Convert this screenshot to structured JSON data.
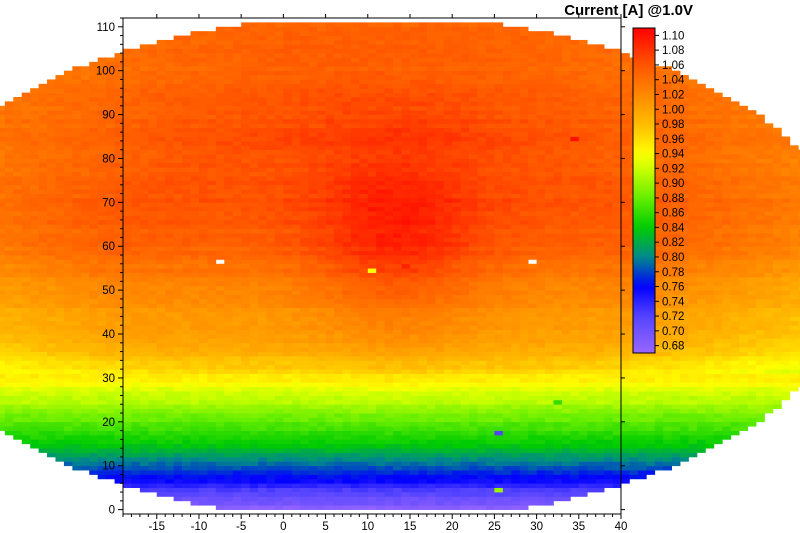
{
  "chart_data": {
    "type": "heatmap",
    "title": "",
    "colorbar_title": "Current [A] @1.0V",
    "xlabel": "",
    "ylabel": "",
    "xlim": [
      -19,
      40
    ],
    "ylim": [
      -1,
      112
    ],
    "x_ticks": [
      -15,
      -10,
      -5,
      0,
      5,
      10,
      15,
      20,
      25,
      30,
      35,
      40
    ],
    "y_ticks": [
      0,
      10,
      20,
      30,
      40,
      50,
      60,
      70,
      80,
      90,
      100,
      110
    ],
    "wafer_center": [
      10.5,
      55
    ],
    "wafer_radius": 57.5,
    "die_size": [
      1,
      1
    ],
    "missing_dies": [
      [
        -8,
        56
      ],
      [
        29,
        56
      ]
    ],
    "colorbar": {
      "ticks": [
        1.1,
        1.08,
        1.06,
        1.04,
        1.02,
        1.0,
        0.98,
        0.96,
        0.94,
        0.92,
        0.9,
        0.88,
        0.86,
        0.84,
        0.82,
        0.8,
        0.78,
        0.76,
        0.74,
        0.72,
        0.7,
        0.68
      ],
      "range": [
        0.67,
        1.11
      ],
      "stops": [
        {
          "value": 0.67,
          "color": "#9966ff"
        },
        {
          "value": 0.72,
          "color": "#5544ff"
        },
        {
          "value": 0.76,
          "color": "#0000ff"
        },
        {
          "value": 0.8,
          "color": "#008a8a"
        },
        {
          "value": 0.84,
          "color": "#00cc00"
        },
        {
          "value": 0.88,
          "color": "#66ee00"
        },
        {
          "value": 0.92,
          "color": "#ccff00"
        },
        {
          "value": 0.94,
          "color": "#ffff00"
        },
        {
          "value": 0.98,
          "color": "#ffbb00"
        },
        {
          "value": 1.02,
          "color": "#ff8800"
        },
        {
          "value": 1.06,
          "color": "#ff5500"
        },
        {
          "value": 1.11,
          "color": "#ff0000"
        }
      ]
    },
    "value_profile_by_y": [
      {
        "y": 0,
        "value": 0.68
      },
      {
        "y": 4,
        "value": 0.72
      },
      {
        "y": 8,
        "value": 0.77
      },
      {
        "y": 11,
        "value": 0.8
      },
      {
        "y": 14,
        "value": 0.83
      },
      {
        "y": 18,
        "value": 0.86
      },
      {
        "y": 22,
        "value": 0.89
      },
      {
        "y": 26,
        "value": 0.92
      },
      {
        "y": 30,
        "value": 0.95
      },
      {
        "y": 34,
        "value": 0.98
      },
      {
        "y": 40,
        "value": 1.0
      },
      {
        "y": 50,
        "value": 1.02
      },
      {
        "y": 60,
        "value": 1.05
      },
      {
        "y": 70,
        "value": 1.06
      },
      {
        "y": 80,
        "value": 1.06
      },
      {
        "y": 90,
        "value": 1.07
      },
      {
        "y": 100,
        "value": 1.07
      },
      {
        "y": 110,
        "value": 1.08
      }
    ],
    "hotspot": {
      "x": 13,
      "y": 60,
      "peak_boost": 0.04,
      "spread_x": 10,
      "spread_y": 22
    },
    "edge_falloff": 0.035,
    "outlier_dies": [
      {
        "x": 10,
        "y": 54,
        "value": 0.94
      },
      {
        "x": 14,
        "y": 55,
        "value": 1.09
      },
      {
        "x": 10,
        "y": 68,
        "value": 1.1
      },
      {
        "x": 25,
        "y": 17,
        "value": 0.72
      },
      {
        "x": 32,
        "y": 24,
        "value": 0.86
      },
      {
        "x": 25,
        "y": 4,
        "value": 0.9
      },
      {
        "x": 34,
        "y": 84,
        "value": 1.1
      },
      {
        "x": -4,
        "y": 68,
        "value": 1.06
      }
    ]
  }
}
